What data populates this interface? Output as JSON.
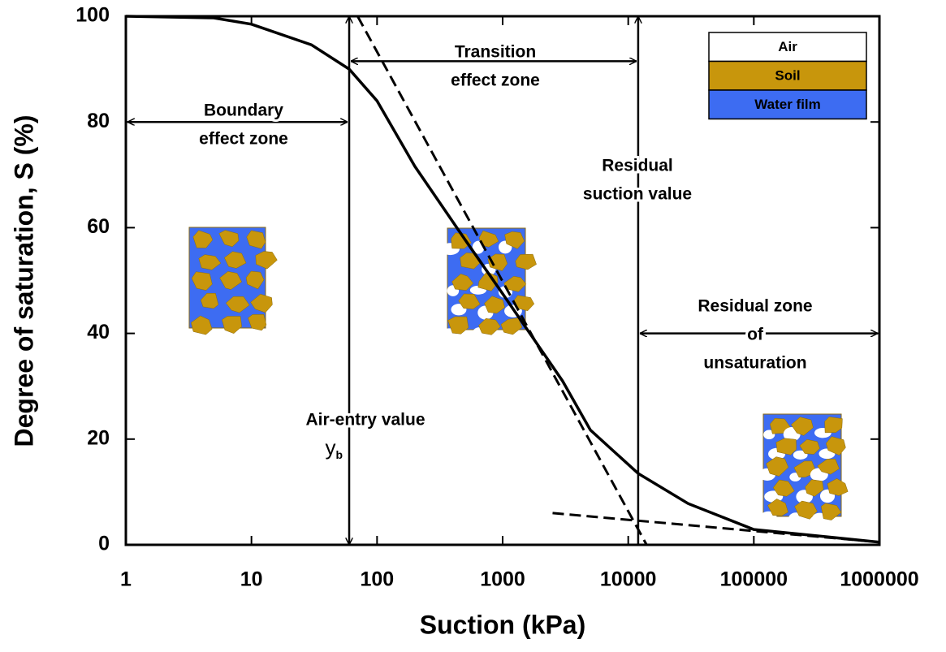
{
  "chart_data": {
    "type": "line",
    "xlabel": "Suction (kPa)",
    "ylabel": "Degree of saturation, S (%)",
    "xscale": "log",
    "xlim": [
      1,
      1000000
    ],
    "ylim": [
      0,
      100
    ],
    "xticks": [
      1,
      10,
      100,
      1000,
      10000,
      100000,
      1000000
    ],
    "yticks": [
      0,
      20,
      40,
      60,
      80,
      100
    ],
    "series": [
      {
        "color": "#000000",
        "x": [
          1,
          5,
          10,
          30,
          60,
          100,
          200,
          500,
          1000,
          3000,
          5000,
          12000,
          30000,
          100000,
          1000000
        ],
        "values": [
          100,
          99.7,
          98.5,
          94.6,
          90,
          84,
          71.6,
          57.8,
          47.5,
          31,
          21.7,
          13.5,
          7.8,
          2.9,
          0.5
        ]
      }
    ],
    "dashed_lines": [
      {
        "x": [
          1,
          100
        ],
        "values": [
          100,
          100
        ]
      },
      {
        "x": [
          70,
          14000
        ],
        "values": [
          100,
          0
        ]
      },
      {
        "x": [
          2500,
          1000000
        ],
        "values": [
          6,
          0.5
        ]
      }
    ],
    "vertical_lines": [
      60,
      12000
    ],
    "zones": [
      {
        "lines": [
          "Boundary",
          "effect zone"
        ],
        "from": 1,
        "to": 60,
        "at": 80
      },
      {
        "lines": [
          "Transition",
          "effect zone"
        ],
        "from": 60,
        "to": 12000,
        "at": 91.5
      },
      {
        "lines": [
          "Residual zone",
          "of",
          "unsaturation"
        ],
        "from": 12000,
        "to": 1000000,
        "at": 40
      }
    ],
    "annotations": [
      {
        "lines": [
          "Residual",
          "suction value"
        ]
      },
      {
        "lines": [
          "Air-entry value"
        ]
      }
    ],
    "air_entry_symbol": "y",
    "air_entry_subscript": "b",
    "legend": {
      "position": "upper right",
      "entries": [
        {
          "label": "Air",
          "color": "#ffffff"
        },
        {
          "label": "Soil",
          "color": "#c8960c"
        },
        {
          "label": "Water film",
          "color": "#3d6cf2"
        }
      ]
    }
  }
}
